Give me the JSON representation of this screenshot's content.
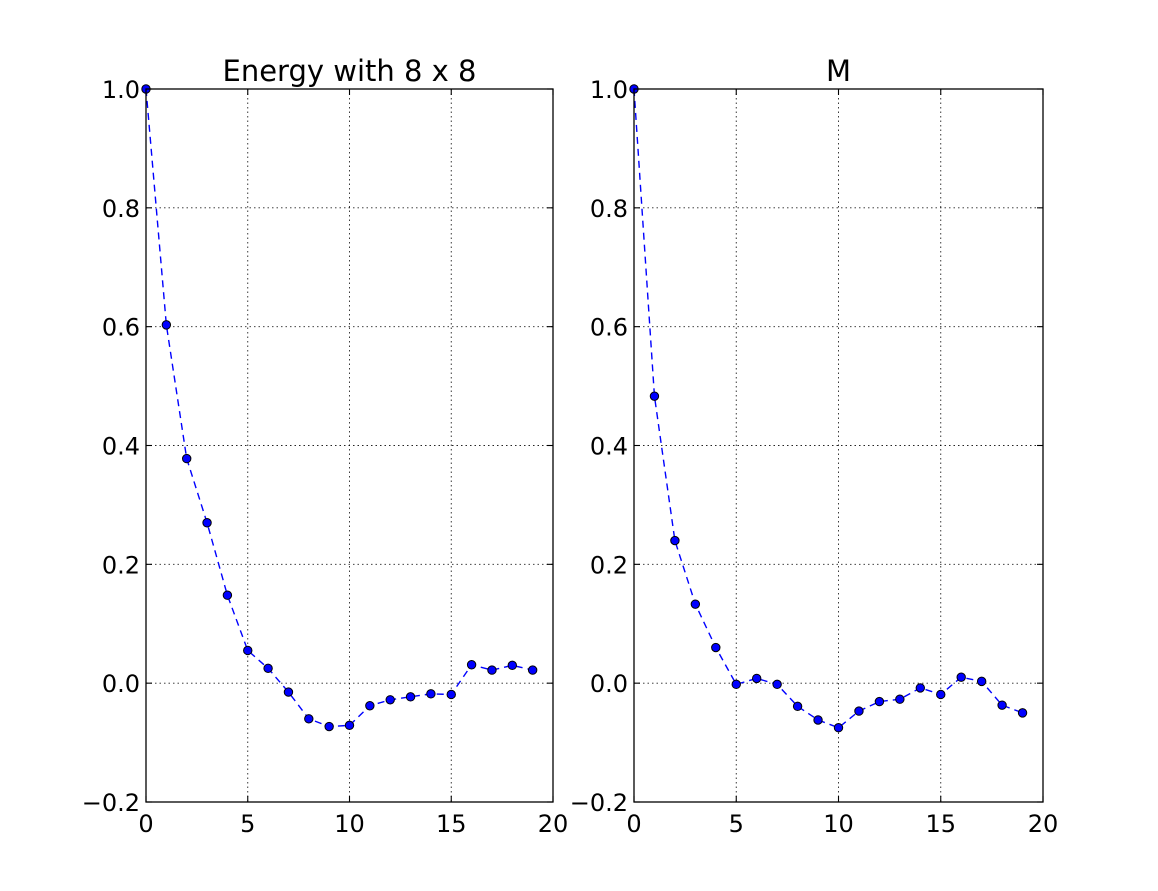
{
  "chart_data": [
    {
      "type": "line",
      "title": "Energy with 8 x 8",
      "xlim": [
        0,
        20
      ],
      "ylim": [
        -0.2,
        1.0
      ],
      "xticks": [
        "0",
        "5",
        "10",
        "15",
        "20"
      ],
      "yticks": [
        "−0.2",
        "0.0",
        "0.2",
        "0.4",
        "0.6",
        "0.8",
        "1.0"
      ],
      "grid": true,
      "color": "#0000ff",
      "series": [
        {
          "x": [
            0,
            1,
            2,
            3,
            4,
            5,
            6,
            7,
            8,
            9,
            10,
            11,
            12,
            13,
            14,
            15,
            16,
            17,
            18,
            19
          ],
          "y": [
            1.0,
            0.603,
            0.378,
            0.27,
            0.148,
            0.055,
            0.025,
            -0.015,
            -0.06,
            -0.073,
            -0.071,
            -0.038,
            -0.028,
            -0.023,
            -0.018,
            -0.019,
            0.031,
            0.022,
            0.03,
            0.022
          ]
        }
      ]
    },
    {
      "type": "line",
      "title": "M",
      "xlim": [
        0,
        20
      ],
      "ylim": [
        -0.2,
        1.0
      ],
      "xticks": [
        "0",
        "5",
        "10",
        "15",
        "20"
      ],
      "yticks": [
        "−0.2",
        "0.0",
        "0.2",
        "0.4",
        "0.6",
        "0.8",
        "1.0"
      ],
      "grid": true,
      "color": "#0000ff",
      "series": [
        {
          "x": [
            0,
            1,
            2,
            3,
            4,
            5,
            6,
            7,
            8,
            9,
            10,
            11,
            12,
            13,
            14,
            15,
            16,
            17,
            18,
            19
          ],
          "y": [
            1.0,
            0.483,
            0.24,
            0.133,
            0.06,
            -0.002,
            0.008,
            -0.002,
            -0.039,
            -0.062,
            -0.075,
            -0.047,
            -0.031,
            -0.027,
            -0.008,
            -0.019,
            0.01,
            0.003,
            -0.037,
            -0.05
          ]
        }
      ]
    }
  ]
}
